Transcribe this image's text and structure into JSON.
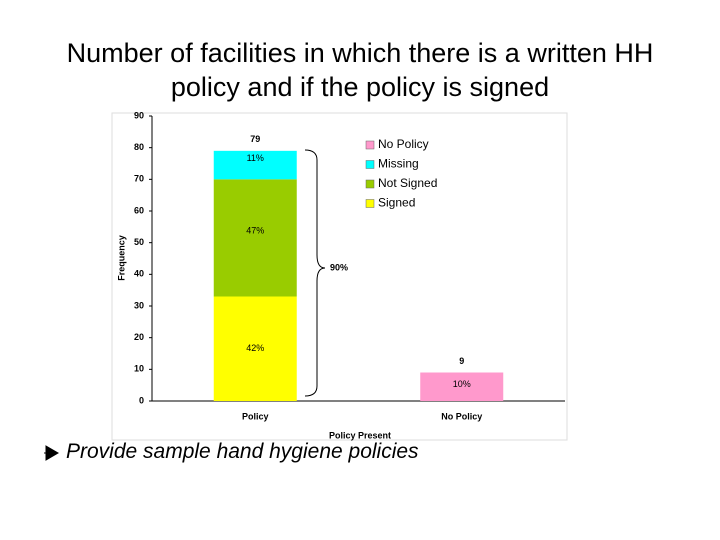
{
  "title": "Number of facilities in which there is a written HH policy and if the policy is signed",
  "bullet": "Provide sample hand hygiene policies",
  "chart_data": {
    "type": "stacked-bar",
    "categories": [
      "Policy",
      "No Policy"
    ],
    "series": [
      {
        "name": "Signed",
        "color": "#ffff00",
        "values": [
          33,
          null
        ],
        "percent_labels": [
          "42%",
          null
        ]
      },
      {
        "name": "Not Signed",
        "color": "#99cc00",
        "values": [
          37,
          null
        ],
        "percent_labels": [
          "47%",
          null
        ]
      },
      {
        "name": "Missing",
        "color": "#00ffff",
        "values": [
          9,
          null
        ],
        "percent_labels": [
          "11%",
          null
        ]
      },
      {
        "name": "No Policy",
        "color": "#ff99cc",
        "values": [
          null,
          9
        ],
        "percent_labels": [
          null,
          "10%"
        ]
      }
    ],
    "totals": [
      79,
      9
    ],
    "annotation": "90%",
    "ylim": [
      0,
      90
    ],
    "yticks": [
      0,
      10,
      20,
      30,
      40,
      50,
      60,
      70,
      80,
      90
    ],
    "ylabel": "Frequency",
    "xlabel": "Policy Present",
    "legend": "upper right"
  }
}
